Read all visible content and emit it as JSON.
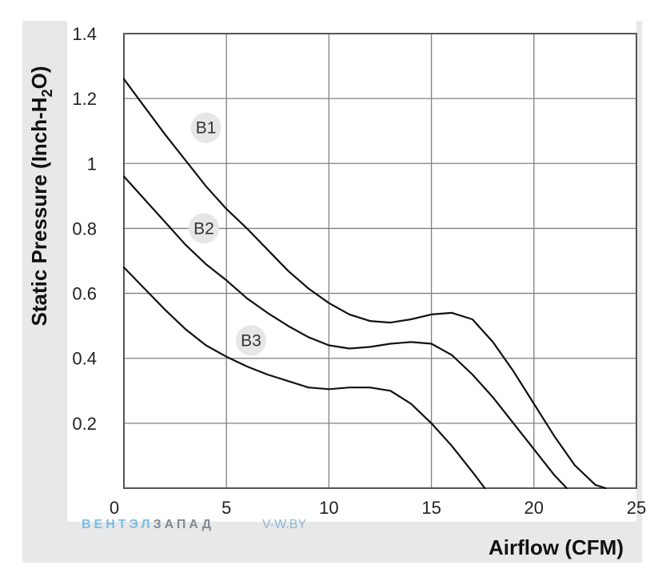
{
  "chart_data": {
    "type": "line",
    "xlabel": "Airflow (CFM)",
    "ylabel_main": "Static Pressure (Inch-H",
    "ylabel_sub": "2",
    "ylabel_tail": "O)",
    "xlim": [
      0,
      25
    ],
    "ylim": [
      0,
      1.4
    ],
    "x_ticks": [
      0,
      5,
      10,
      15,
      20,
      25
    ],
    "x_tick_labels": [
      "0",
      "5",
      "10",
      "15",
      "20",
      "25"
    ],
    "y_ticks": [
      0.2,
      0.4,
      0.6,
      0.8,
      1,
      1.2,
      1.4
    ],
    "y_tick_labels": [
      "0.2",
      "0.4",
      "0.6",
      "0.8",
      "1",
      "1.2",
      "1.4"
    ],
    "grid": true,
    "series": [
      {
        "name": "B1",
        "x": [
          0,
          1,
          2,
          3,
          4,
          5,
          6,
          7,
          8,
          9,
          10,
          11,
          12,
          13,
          14,
          15,
          16,
          17,
          18,
          19,
          20,
          21,
          22,
          23,
          23.5
        ],
        "y": [
          1.26,
          1.175,
          1.09,
          1.01,
          0.93,
          0.86,
          0.8,
          0.735,
          0.67,
          0.615,
          0.57,
          0.535,
          0.515,
          0.51,
          0.52,
          0.535,
          0.54,
          0.52,
          0.45,
          0.36,
          0.26,
          0.16,
          0.07,
          0.01,
          0
        ]
      },
      {
        "name": "B2",
        "x": [
          0,
          1,
          2,
          3,
          4,
          5,
          6,
          7,
          8,
          9,
          10,
          11,
          12,
          13,
          14,
          15,
          16,
          17,
          18,
          19,
          20,
          21,
          21.6
        ],
        "y": [
          0.96,
          0.89,
          0.82,
          0.75,
          0.69,
          0.64,
          0.585,
          0.54,
          0.5,
          0.465,
          0.44,
          0.43,
          0.435,
          0.445,
          0.45,
          0.445,
          0.41,
          0.35,
          0.28,
          0.2,
          0.12,
          0.04,
          0
        ]
      },
      {
        "name": "B3",
        "x": [
          0,
          1,
          2,
          3,
          4,
          5,
          6,
          7,
          8,
          9,
          10,
          11,
          12,
          13,
          14,
          15,
          16,
          17,
          17.6
        ],
        "y": [
          0.68,
          0.615,
          0.55,
          0.49,
          0.44,
          0.405,
          0.375,
          0.35,
          0.33,
          0.31,
          0.305,
          0.31,
          0.31,
          0.3,
          0.26,
          0.2,
          0.13,
          0.05,
          0
        ]
      }
    ],
    "curve_labels": [
      {
        "text": "B1",
        "x": 4,
        "y": 1.11
      },
      {
        "text": "B2",
        "x": 3.9,
        "y": 0.8
      },
      {
        "text": "B3",
        "x": 6.2,
        "y": 0.455
      }
    ],
    "colors": {
      "line": "#111111",
      "grid": "#808080",
      "frame_background": "#e8e8e8",
      "plot_background": "#ffffff",
      "label_badge": "#e6e6e6"
    }
  },
  "watermark": {
    "brand_light": "ВЕНТЭЛ",
    "brand_dark": "ЗАПАД",
    "site": "V-W.BY",
    "colors": {
      "light": "#7bbde6",
      "dark": "#7f8a93",
      "site": "#8fb8d6"
    }
  }
}
